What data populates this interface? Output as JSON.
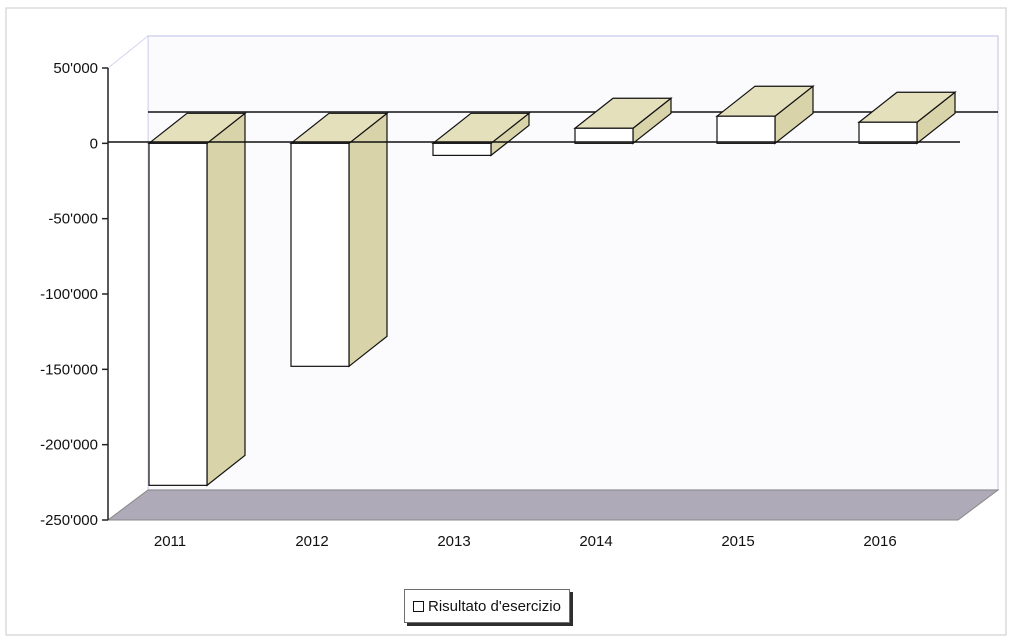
{
  "chart_data": {
    "type": "bar",
    "categories": [
      "2011",
      "2012",
      "2013",
      "2014",
      "2015",
      "2016"
    ],
    "series": [
      {
        "name": "Risultato d'esercizio",
        "values": [
          -227000,
          -148000,
          -8000,
          10000,
          18000,
          14000
        ]
      }
    ],
    "y_ticks": [
      "50'000",
      "0",
      "-50'000",
      "-100'000",
      "-150'000",
      "-200'000",
      "-250'000"
    ],
    "y_tick_values": [
      50000,
      0,
      -50000,
      -100000,
      -150000,
      -200000,
      -250000
    ],
    "ylim": [
      -250000,
      50000
    ],
    "style_3d": true,
    "legend_position": "bottom",
    "colors": {
      "bar_front": "#ffffff",
      "bar_side": "#d8d3a8",
      "bar_top": "#e4e0bc",
      "floor": "#aeaab8",
      "wall": "#fbfbfe",
      "wall_border": "#d4d4ee"
    }
  }
}
